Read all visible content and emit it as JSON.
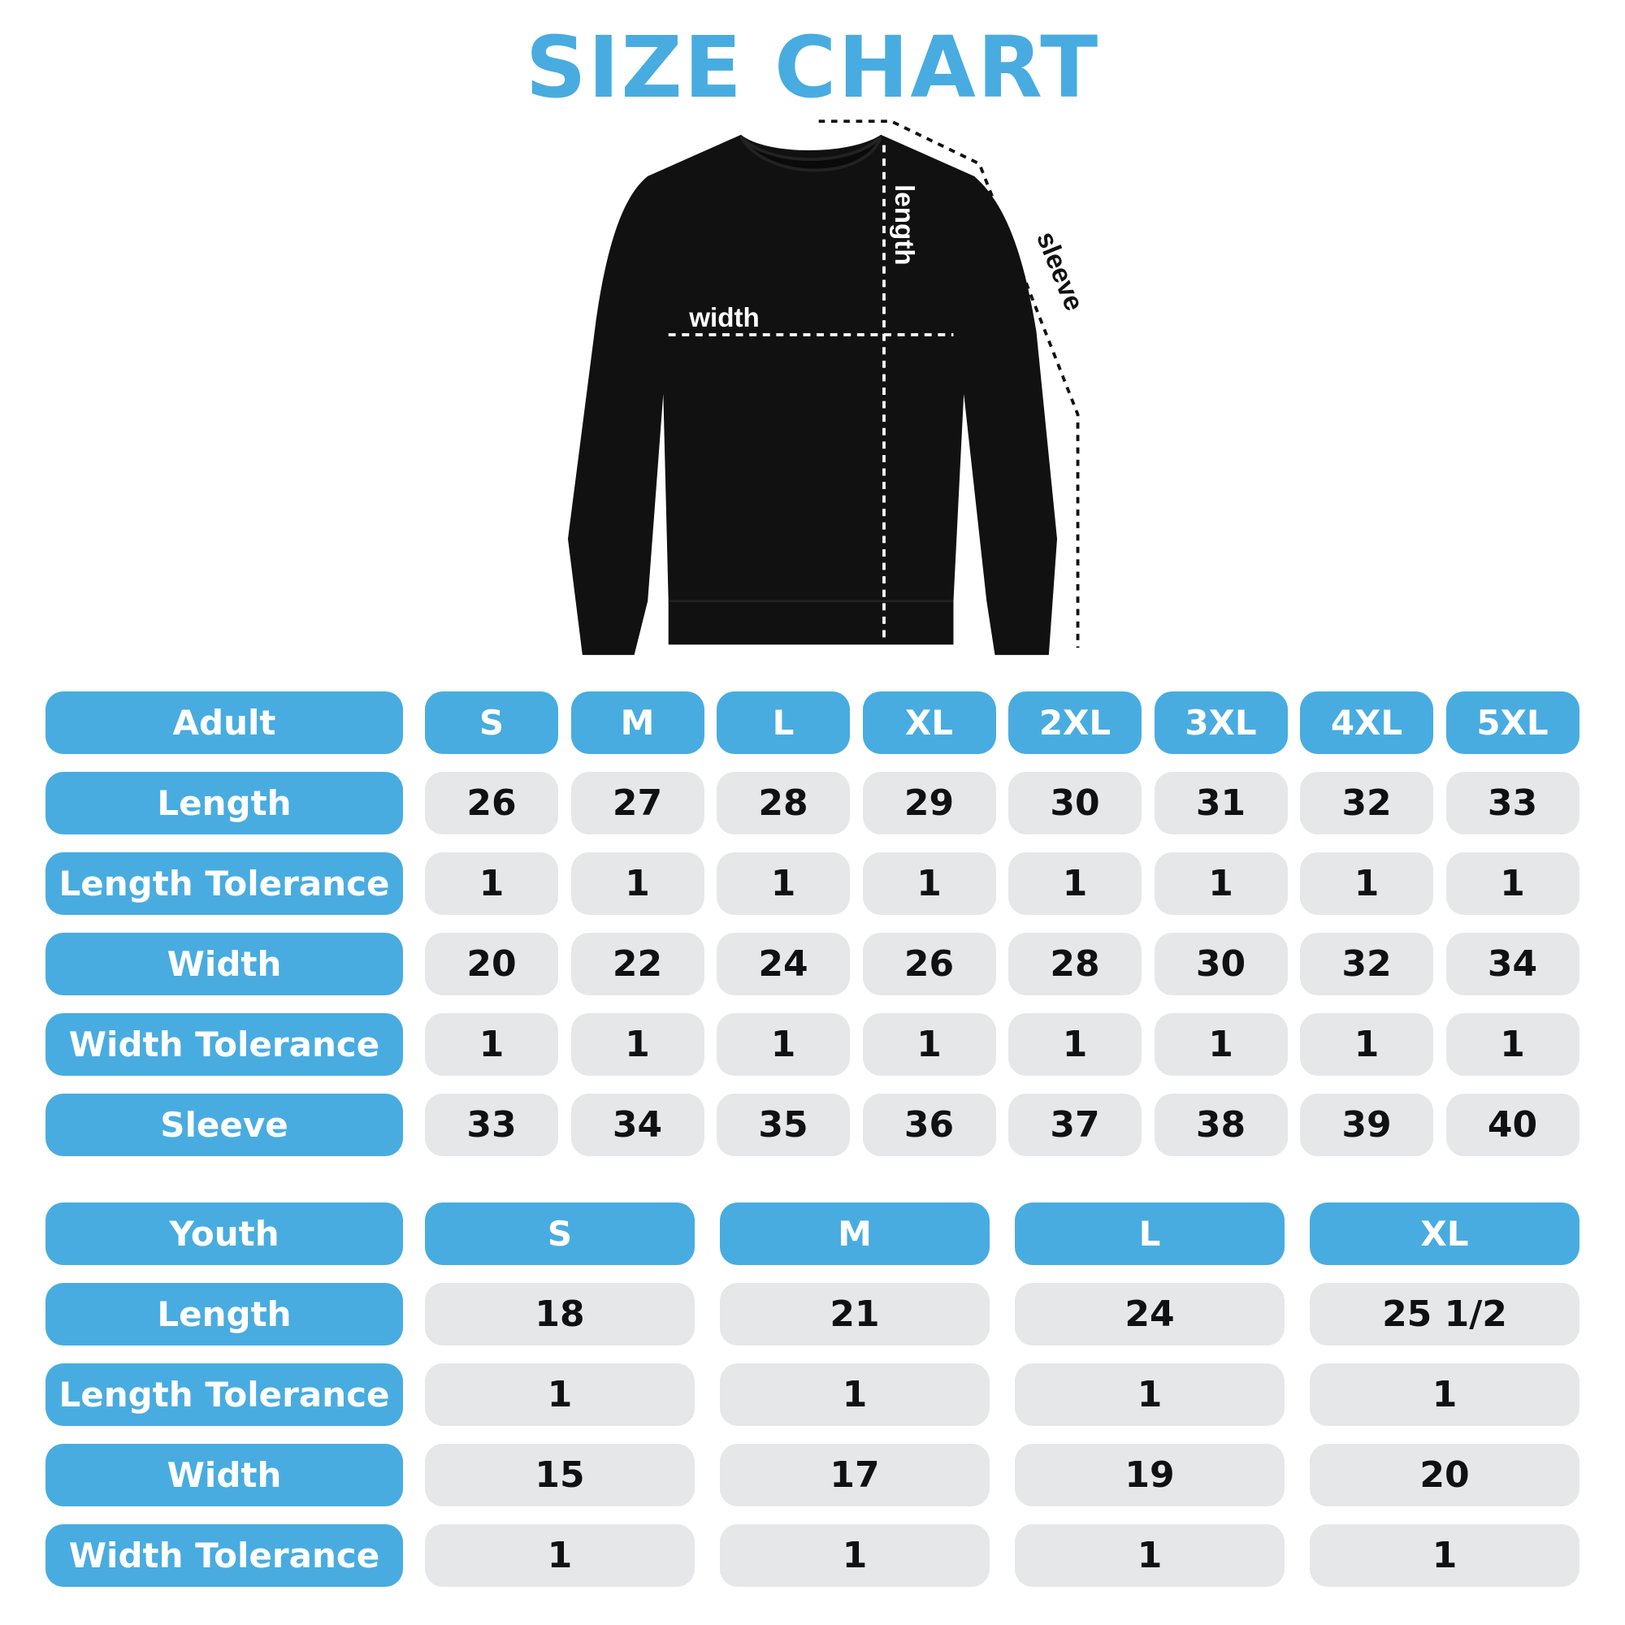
{
  "title": "SIZE CHART",
  "colors": {
    "accent": "#48ACE0",
    "cell": "#E6E7E9",
    "text": "#111111"
  },
  "illustration": {
    "labels": {
      "width": "width",
      "length": "length",
      "sleeve": "sleeve"
    }
  },
  "adult": {
    "header": "Adult",
    "sizes": [
      "S",
      "M",
      "L",
      "XL",
      "2XL",
      "3XL",
      "4XL",
      "5XL"
    ],
    "rows": [
      {
        "label": "Length",
        "values": [
          "26",
          "27",
          "28",
          "29",
          "30",
          "31",
          "32",
          "33"
        ]
      },
      {
        "label": "Length Tolerance",
        "values": [
          "1",
          "1",
          "1",
          "1",
          "1",
          "1",
          "1",
          "1"
        ]
      },
      {
        "label": "Width",
        "values": [
          "20",
          "22",
          "24",
          "26",
          "28",
          "30",
          "32",
          "34"
        ]
      },
      {
        "label": "Width Tolerance",
        "values": [
          "1",
          "1",
          "1",
          "1",
          "1",
          "1",
          "1",
          "1"
        ]
      },
      {
        "label": "Sleeve",
        "values": [
          "33",
          "34",
          "35",
          "36",
          "37",
          "38",
          "39",
          "40"
        ]
      }
    ]
  },
  "youth": {
    "header": "Youth",
    "sizes": [
      "S",
      "M",
      "L",
      "XL"
    ],
    "rows": [
      {
        "label": "Length",
        "values": [
          "18",
          "21",
          "24",
          "25 1/2"
        ]
      },
      {
        "label": "Length Tolerance",
        "values": [
          "1",
          "1",
          "1",
          "1"
        ]
      },
      {
        "label": "Width",
        "values": [
          "15",
          "17",
          "19",
          "20"
        ]
      },
      {
        "label": "Width Tolerance",
        "values": [
          "1",
          "1",
          "1",
          "1"
        ]
      }
    ]
  }
}
